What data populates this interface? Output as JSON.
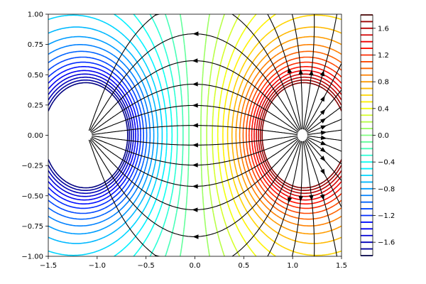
{
  "chart_data": {
    "type": "contour",
    "title": "",
    "xlabel": "",
    "ylabel": "",
    "xlim": [
      -1.5,
      1.5
    ],
    "ylim": [
      -1.0,
      1.0
    ],
    "x_ticks": [
      "−1.5",
      "−1.0",
      "−0.5",
      "0.0",
      "0.5",
      "1.0",
      "1.5"
    ],
    "y_ticks": [
      "−1.00",
      "−0.75",
      "−0.50",
      "−0.25",
      "0.00",
      "0.25",
      "0.50",
      "0.75",
      "1.00"
    ],
    "charges": [
      {
        "x": -1.1,
        "y": 0.0,
        "sign": "negative"
      },
      {
        "x": 1.1,
        "y": 0.0,
        "sign": "positive"
      }
    ],
    "contour_levels": {
      "min": -1.8,
      "max": 1.8,
      "step": 0.1
    },
    "colormap": "jet",
    "streamline_color": "#000000",
    "colorbar": {
      "range": [
        -1.8,
        1.8
      ],
      "ticks": [
        "−1.6",
        "−1.2",
        "−0.8",
        "−0.4",
        "0.0",
        "0.4",
        "0.8",
        "1.2",
        "1.6"
      ]
    }
  }
}
